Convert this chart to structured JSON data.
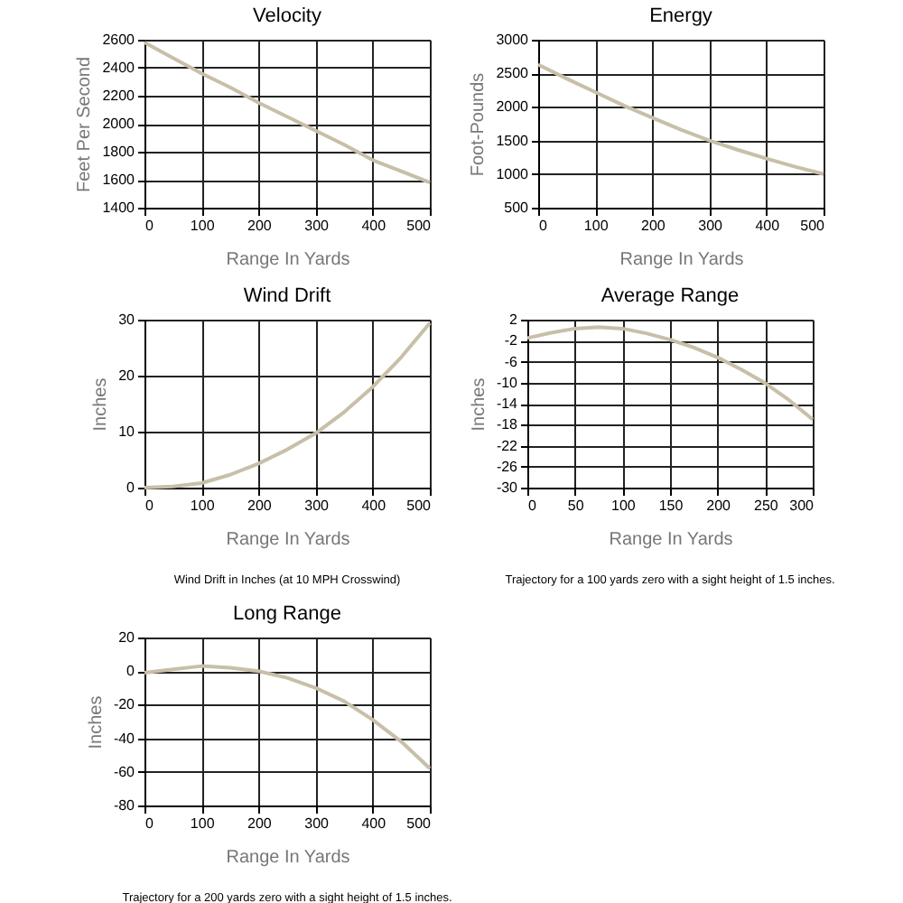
{
  "chart_data": [
    {
      "type": "line",
      "title": "Velocity",
      "xlabel": "Range In Yards",
      "ylabel": "Feet Per Second",
      "x": [
        0,
        50,
        100,
        150,
        200,
        250,
        300,
        350,
        400,
        450,
        500
      ],
      "series": [
        {
          "color": "#c8bfa9",
          "values": [
            2580,
            2470,
            2360,
            2260,
            2150,
            2050,
            1950,
            1850,
            1740,
            1660,
            1580
          ]
        }
      ],
      "xlim": [
        0,
        500
      ],
      "ylim": [
        1400,
        2600
      ],
      "xticks": [
        0,
        100,
        200,
        300,
        400,
        500
      ],
      "yticks": [
        1400,
        1600,
        1800,
        2000,
        2200,
        2400,
        2600
      ],
      "grid": true
    },
    {
      "type": "line",
      "title": "Energy",
      "xlabel": "Range In Yards",
      "ylabel": "Foot-Pounds",
      "x": [
        0,
        50,
        100,
        150,
        200,
        250,
        300,
        350,
        400,
        450,
        500
      ],
      "series": [
        {
          "color": "#c8bfa9",
          "values": [
            2630,
            2420,
            2220,
            2020,
            1840,
            1660,
            1500,
            1360,
            1230,
            1110,
            1000
          ]
        }
      ],
      "xlim": [
        0,
        500
      ],
      "ylim": [
        500,
        3000
      ],
      "xticks": [
        0,
        100,
        200,
        300,
        400,
        500
      ],
      "yticks": [
        500,
        1000,
        1500,
        2000,
        2500,
        3000
      ],
      "grid": true
    },
    {
      "type": "line",
      "title": "Wind Drift",
      "xlabel": "Range In Yards",
      "ylabel": "Inches",
      "x": [
        0,
        50,
        100,
        150,
        200,
        250,
        300,
        350,
        400,
        450,
        500
      ],
      "series": [
        {
          "color": "#c8bfa9",
          "values": [
            0,
            0.2,
            0.8,
            2.3,
            4.3,
            6.8,
            9.7,
            13.5,
            18,
            23.3,
            29.4
          ]
        }
      ],
      "xlim": [
        0,
        500
      ],
      "ylim": [
        0,
        30
      ],
      "xticks": [
        0,
        100,
        200,
        300,
        400,
        500
      ],
      "yticks": [
        0,
        10,
        20,
        30
      ],
      "grid": true,
      "annotations": [
        "Wind Drift in Inches (at 10 MPH Crosswind)"
      ]
    },
    {
      "type": "line",
      "title": "Average Range",
      "xlabel": "Range In Yards",
      "ylabel": "Inches",
      "x": [
        0,
        25,
        50,
        75,
        100,
        125,
        150,
        175,
        200,
        225,
        250,
        275,
        300
      ],
      "series": [
        {
          "color": "#c8bfa9",
          "values": [
            -1.5,
            -0.5,
            0.3,
            0.6,
            0.3,
            -0.6,
            -1.8,
            -3.3,
            -5.2,
            -7.5,
            -10.1,
            -13.3,
            -17
          ]
        }
      ],
      "xlim": [
        0,
        300
      ],
      "ylim": [
        -30,
        2
      ],
      "xticks": [
        0,
        50,
        100,
        150,
        200,
        250,
        300
      ],
      "yticks": [
        -30,
        -26,
        -22,
        -18,
        -14,
        -10,
        -6,
        -2,
        2
      ],
      "grid": true,
      "annotations": [
        "Trajectory for a 100 yards zero with a sight height of 1.5 inches."
      ]
    },
    {
      "type": "line",
      "title": "Long Range",
      "xlabel": "Range In Yards",
      "ylabel": "Inches",
      "x": [
        0,
        50,
        100,
        150,
        200,
        250,
        300,
        350,
        400,
        450,
        500
      ],
      "series": [
        {
          "color": "#c8bfa9",
          "values": [
            -1,
            1,
            3,
            2,
            0,
            -4,
            -10,
            -18,
            -29,
            -42,
            -58
          ]
        }
      ],
      "xlim": [
        0,
        500
      ],
      "ylim": [
        -80,
        20
      ],
      "xticks": [
        0,
        100,
        200,
        300,
        400,
        500
      ],
      "yticks": [
        -80,
        -60,
        -40,
        -20,
        0,
        20
      ],
      "grid": true,
      "annotations": [
        "Trajectory for a 200 yards zero with a sight height of 1.5 inches."
      ]
    }
  ]
}
